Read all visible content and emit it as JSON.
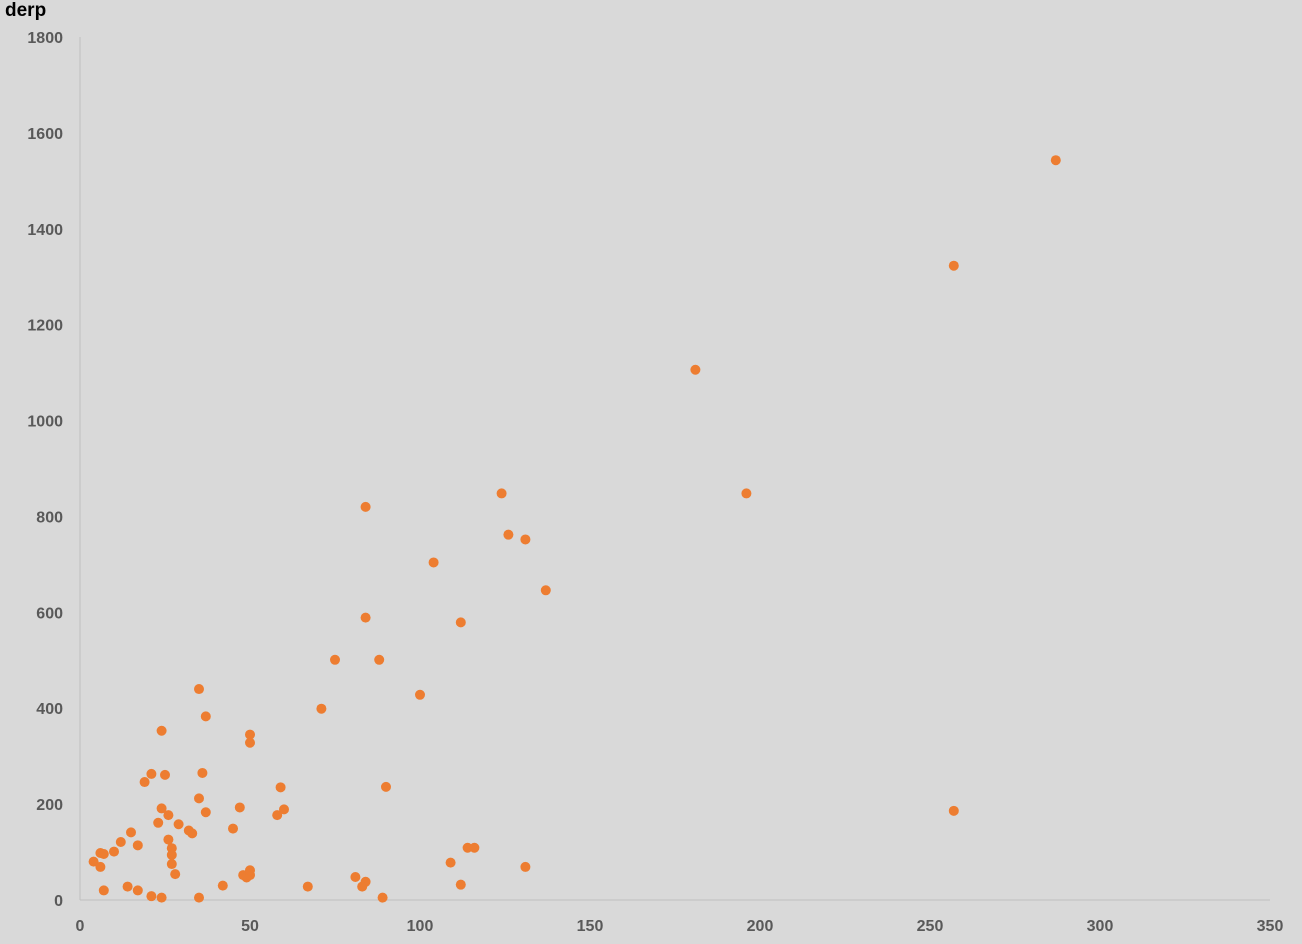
{
  "chart_data": {
    "type": "scatter",
    "title": "derp",
    "xlabel": "",
    "ylabel": "",
    "xlim": [
      0,
      350
    ],
    "ylim": [
      0,
      1800
    ],
    "x_ticks": [
      "0",
      "50",
      "100",
      "150",
      "200",
      "250",
      "300",
      "350"
    ],
    "y_ticks": [
      "0",
      "200",
      "400",
      "600",
      "800",
      "1000",
      "1200",
      "1400",
      "1600",
      "1800"
    ],
    "grid": false,
    "legend": "none",
    "marker_color": "#ed7d31",
    "series": [
      {
        "points": [
          [
            287,
            1543
          ],
          [
            257,
            1323
          ],
          [
            181,
            1106
          ],
          [
            196,
            848
          ],
          [
            124,
            848
          ],
          [
            257,
            186
          ],
          [
            137,
            646
          ],
          [
            126,
            762
          ],
          [
            131,
            752
          ],
          [
            104,
            704
          ],
          [
            112,
            579
          ],
          [
            84,
            820
          ],
          [
            84,
            589
          ],
          [
            75,
            501
          ],
          [
            88,
            501
          ],
          [
            100,
            428
          ],
          [
            71,
            399
          ],
          [
            90,
            236
          ],
          [
            59,
            235
          ],
          [
            60,
            189
          ],
          [
            58,
            177
          ],
          [
            50,
            345
          ],
          [
            50,
            328
          ],
          [
            47,
            193
          ],
          [
            45,
            149
          ],
          [
            37,
            383
          ],
          [
            35,
            440
          ],
          [
            36,
            265
          ],
          [
            35,
            212
          ],
          [
            37,
            183
          ],
          [
            25,
            261
          ],
          [
            21,
            263
          ],
          [
            24,
            353
          ],
          [
            19,
            246
          ],
          [
            24,
            191
          ],
          [
            26,
            177
          ],
          [
            29,
            158
          ],
          [
            23,
            161
          ],
          [
            32,
            145
          ],
          [
            33,
            139
          ],
          [
            26,
            126
          ],
          [
            27,
            108
          ],
          [
            27,
            94
          ],
          [
            27,
            75
          ],
          [
            28,
            54
          ],
          [
            15,
            141
          ],
          [
            12,
            121
          ],
          [
            17,
            114
          ],
          [
            10,
            101
          ],
          [
            6,
            98
          ],
          [
            7,
            96
          ],
          [
            4,
            80
          ],
          [
            6,
            69
          ],
          [
            7,
            20
          ],
          [
            14,
            28
          ],
          [
            17,
            20
          ],
          [
            21,
            8
          ],
          [
            24,
            5
          ],
          [
            35,
            5
          ],
          [
            42,
            30
          ],
          [
            48,
            52
          ],
          [
            49,
            47
          ],
          [
            50,
            52
          ],
          [
            50,
            62
          ],
          [
            67,
            28
          ],
          [
            81,
            48
          ],
          [
            84,
            38
          ],
          [
            83,
            28
          ],
          [
            89,
            5
          ],
          [
            109,
            78
          ],
          [
            114,
            109
          ],
          [
            116,
            109
          ],
          [
            112,
            32
          ],
          [
            131,
            69
          ]
        ]
      }
    ]
  }
}
